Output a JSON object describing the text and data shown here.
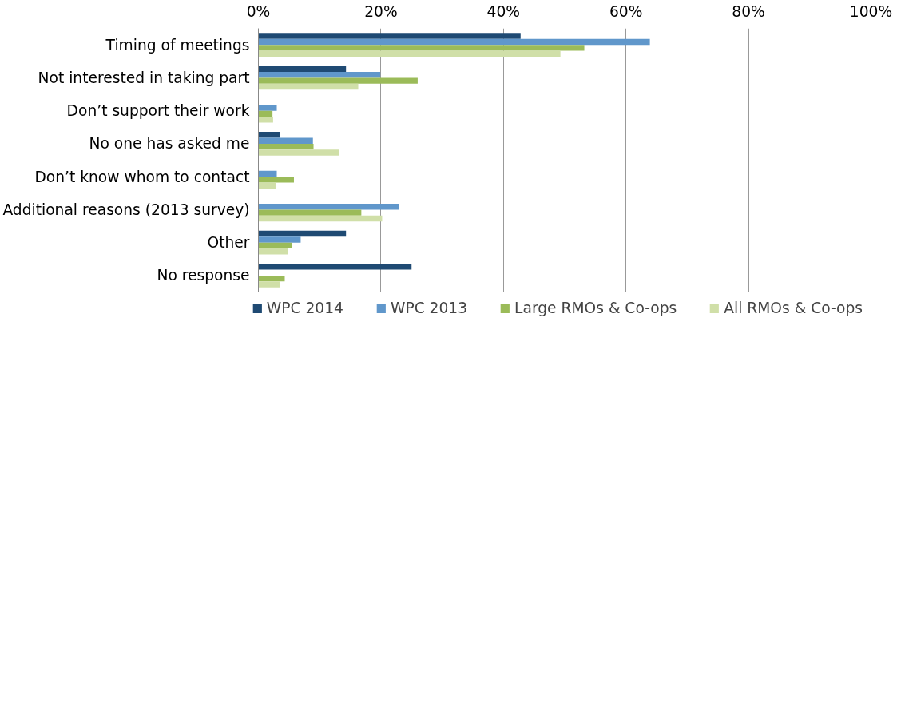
{
  "chart_data": {
    "type": "bar",
    "orientation": "horizontal",
    "categories": [
      "Timing of meetings",
      "Not interested in taking part",
      "Don’t support their work",
      "No one has asked me",
      "Don’t know whom to contact",
      "Additional reasons (2013 survey)",
      "Other",
      "No response"
    ],
    "series": [
      {
        "name": "WPC 2014",
        "color": "#1f4a73",
        "values": [
          42.8,
          14.3,
          null,
          3.5,
          null,
          null,
          14.3,
          25.0
        ]
      },
      {
        "name": "WPC 2013",
        "color": "#6097cb",
        "values": [
          63.9,
          19.9,
          3.0,
          8.9,
          3.0,
          23.0,
          6.9,
          null
        ]
      },
      {
        "name": "Large RMOs & Co-ops",
        "color": "#9bbb59",
        "values": [
          53.2,
          26.0,
          2.3,
          9.0,
          5.8,
          16.8,
          5.5,
          4.3
        ]
      },
      {
        "name": "All RMOs & Co-ops",
        "color": "#d0dfa8",
        "values": [
          49.3,
          16.3,
          2.4,
          13.2,
          2.8,
          20.2,
          4.8,
          3.5
        ]
      }
    ],
    "xlim": [
      0,
      100
    ],
    "xticks": [
      {
        "value": 0,
        "label": "0%"
      },
      {
        "value": 20,
        "label": "20%"
      },
      {
        "value": 40,
        "label": "40%"
      },
      {
        "value": 60,
        "label": "60%"
      },
      {
        "value": 80,
        "label": "80%"
      },
      {
        "value": 100,
        "label": "100%"
      }
    ],
    "grid": "x",
    "legend": "bottom"
  }
}
